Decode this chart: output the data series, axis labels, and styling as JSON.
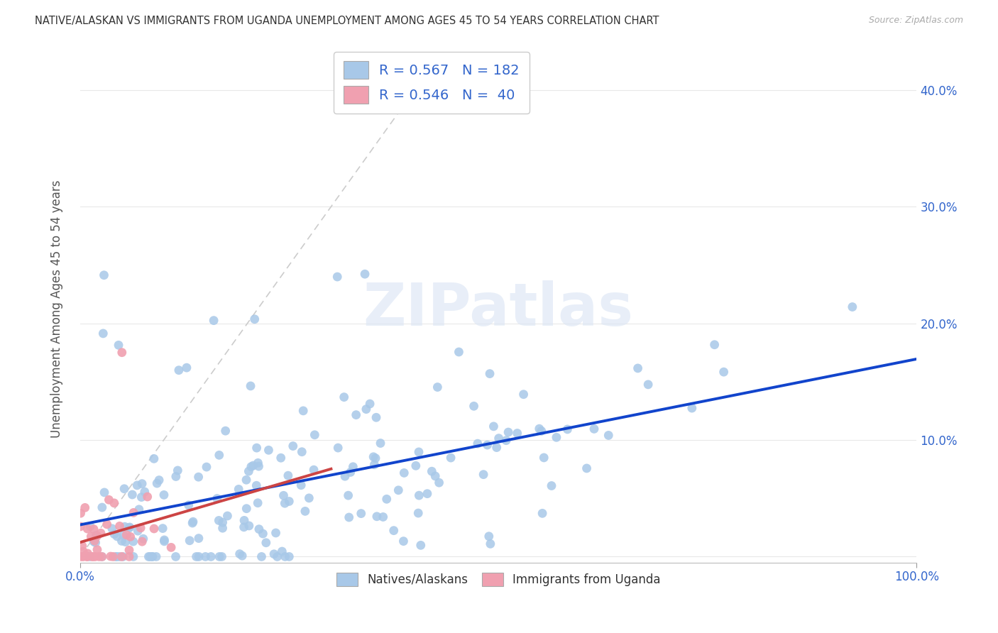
{
  "title": "NATIVE/ALASKAN VS IMMIGRANTS FROM UGANDA UNEMPLOYMENT AMONG AGES 45 TO 54 YEARS CORRELATION CHART",
  "source": "Source: ZipAtlas.com",
  "ylabel": "Unemployment Among Ages 45 to 54 years",
  "ytick_values": [
    0.0,
    0.1,
    0.2,
    0.3,
    0.4
  ],
  "ytick_labels": [
    "",
    "10.0%",
    "20.0%",
    "30.0%",
    "40.0%"
  ],
  "xlim": [
    0,
    1.0
  ],
  "ylim": [
    -0.005,
    0.43
  ],
  "watermark": "ZIPatlas",
  "blue_color": "#a8c8e8",
  "pink_color": "#f0a0b0",
  "trend_blue_color": "#1144cc",
  "trend_pink_color": "#cc4444",
  "ref_line_color": "#cccccc",
  "background_color": "#ffffff",
  "grid_color": "#e8e8e8",
  "seed_blue": 123,
  "seed_pink": 456,
  "n_blue": 182,
  "n_pink": 40,
  "R_blue": 0.567,
  "R_pink": 0.546,
  "legend1_labels": [
    "R = 0.567   N = 182",
    "R = 0.546   N =  40"
  ],
  "legend2_labels": [
    "Natives/Alaskans",
    "Immigrants from Uganda"
  ],
  "tick_color": "#3366cc",
  "label_color": "#555555"
}
